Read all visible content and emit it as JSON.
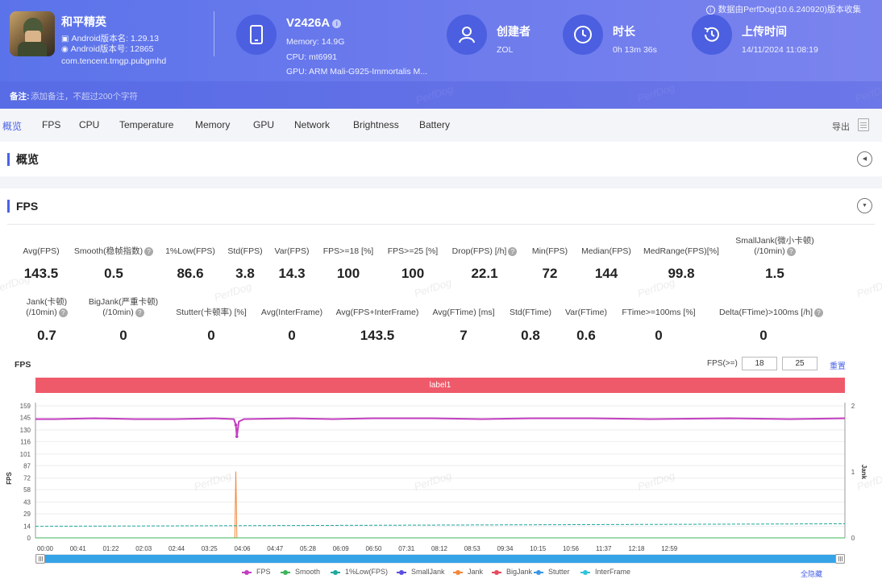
{
  "header": {
    "app": {
      "name": "和平精英",
      "version_name": "Android版本名: 1.29.13",
      "version_code": "Android版本号: 12865",
      "package": "com.tencent.tmgp.pubgmhd"
    },
    "device": {
      "model": "V2426A",
      "memory": "Memory: 14.9G",
      "cpu": "CPU: mt6991",
      "gpu": "GPU: ARM Mali-G925-Immortalis M..."
    },
    "creator": {
      "title": "创建者",
      "value": "ZOL"
    },
    "duration": {
      "title": "时长",
      "value": "0h 13m 36s"
    },
    "upload": {
      "title": "上传时间",
      "value": "14/11/2024 11:08:19"
    },
    "source_note": "数据由PerfDog(10.6.240920)版本收集",
    "remark_label": "备注:",
    "remark_placeholder": "添加备注，不超过200个字符",
    "watermark": "PerfDog"
  },
  "tabs": [
    "概览",
    "FPS",
    "CPU",
    "Temperature",
    "Memory",
    "GPU",
    "Network",
    "Brightness",
    "Battery"
  ],
  "active_tab": "概览",
  "export_label": "导出",
  "overview_section": {
    "title": "概览"
  },
  "fps_section": {
    "title": "FPS",
    "stats_row1": [
      {
        "label": "Avg(FPS)",
        "value": "143.5",
        "help": false
      },
      {
        "label": "Smooth(稳帧指数)",
        "value": "0.5",
        "help": true
      },
      {
        "label": "1%Low(FPS)",
        "value": "86.6",
        "help": false
      },
      {
        "label": "Std(FPS)",
        "value": "3.8",
        "help": false
      },
      {
        "label": "Var(FPS)",
        "value": "14.3",
        "help": false
      },
      {
        "label": "FPS>=18 [%]",
        "value": "100",
        "help": false
      },
      {
        "label": "FPS>=25 [%]",
        "value": "100",
        "help": false
      },
      {
        "label": "Drop(FPS) [/h]",
        "value": "22.1",
        "help": true
      },
      {
        "label": "Min(FPS)",
        "value": "72",
        "help": false
      },
      {
        "label": "Median(FPS)",
        "value": "144",
        "help": false
      },
      {
        "label": "MedRange(FPS)[%]",
        "value": "99.8",
        "help": false
      },
      {
        "label": "SmallJank(微小卡顿)",
        "label2": "(/10min)",
        "value": "1.5",
        "help": true
      }
    ],
    "stats_row2": [
      {
        "label": "Jank(卡顿)",
        "label2": "(/10min)",
        "value": "0.7",
        "help": true
      },
      {
        "label": "BigJank(严重卡顿)",
        "label2": "(/10min)",
        "value": "0",
        "help": true
      },
      {
        "label": "Stutter(卡顿率) [%]",
        "value": "0",
        "help": false
      },
      {
        "label": "Avg(InterFrame)",
        "value": "0",
        "help": false
      },
      {
        "label": "Avg(FPS+InterFrame)",
        "value": "143.5",
        "help": false
      },
      {
        "label": "Avg(FTime) [ms]",
        "value": "7",
        "help": false
      },
      {
        "label": "Std(FTime)",
        "value": "0.8",
        "help": false
      },
      {
        "label": "Var(FTime)",
        "value": "0.6",
        "help": false
      },
      {
        "label": "FTime>=100ms [%]",
        "value": "0",
        "help": false
      },
      {
        "label": "Delta(FTime)>100ms [/h]",
        "value": "0",
        "help": true
      }
    ],
    "chart_title": "FPS",
    "threshold_label": "FPS(>=)",
    "threshold1": "18",
    "threshold2": "25",
    "reset_label": "重置",
    "band_label": "label1",
    "legend_all": "全隐藏"
  },
  "chart_data": {
    "type": "line",
    "xlabel": "",
    "ylabel": "FPS",
    "y2label": "Jank",
    "x_ticks": [
      "00:00",
      "00:41",
      "01:22",
      "02:03",
      "02:44",
      "03:25",
      "04:06",
      "04:47",
      "05:28",
      "06:09",
      "06:50",
      "07:31",
      "08:12",
      "08:53",
      "09:34",
      "10:15",
      "10:56",
      "11:37",
      "12:18",
      "12:59"
    ],
    "y_ticks": [
      0,
      14,
      29,
      43,
      58,
      72,
      87,
      101,
      116,
      130,
      145,
      159
    ],
    "y2_ticks": [
      0,
      1,
      2
    ],
    "ylim": [
      0,
      159
    ],
    "y2lim": [
      0,
      2
    ],
    "xlim_seconds": [
      0,
      816
    ],
    "series": [
      {
        "name": "FPS",
        "color": "#c23fbf",
        "values_desc": "steady",
        "points": [
          [
            0,
            143
          ],
          [
            20,
            143
          ],
          [
            60,
            144
          ],
          [
            100,
            143
          ],
          [
            140,
            143
          ],
          [
            180,
            144
          ],
          [
            200,
            143
          ],
          [
            202,
            136
          ],
          [
            203,
            122
          ],
          [
            205,
            140
          ],
          [
            210,
            143
          ],
          [
            260,
            144
          ],
          [
            300,
            143
          ],
          [
            340,
            144
          ],
          [
            400,
            144
          ],
          [
            450,
            143
          ],
          [
            500,
            144
          ],
          [
            560,
            144
          ],
          [
            620,
            143
          ],
          [
            700,
            144
          ],
          [
            760,
            143
          ],
          [
            816,
            144
          ]
        ]
      },
      {
        "name": "Smooth",
        "color": "#3bb55a",
        "points": [
          [
            0,
            0
          ],
          [
            816,
            0
          ]
        ]
      },
      {
        "name": "1%Low(FPS)",
        "color": "#1ea89c",
        "points": [
          [
            0,
            14
          ],
          [
            816,
            17
          ]
        ]
      },
      {
        "name": "SmallJank",
        "color": "#5a4fe0",
        "points": [
          [
            0,
            0
          ],
          [
            816,
            0
          ]
        ]
      },
      {
        "name": "Jank",
        "color": "#f5873b",
        "points": [
          [
            0,
            0
          ],
          [
            201,
            0
          ],
          [
            202,
            80
          ],
          [
            203,
            0
          ],
          [
            816,
            0
          ]
        ]
      },
      {
        "name": "BigJank",
        "color": "#e84a5f",
        "points": [
          [
            0,
            0
          ],
          [
            816,
            0
          ]
        ]
      },
      {
        "name": "Stutter",
        "color": "#3c97e6",
        "points": [
          [
            0,
            0
          ],
          [
            816,
            0
          ]
        ]
      },
      {
        "name": "InterFrame",
        "color": "#2fc4d9",
        "points": [
          [
            0,
            0
          ],
          [
            816,
            0
          ]
        ]
      }
    ]
  }
}
